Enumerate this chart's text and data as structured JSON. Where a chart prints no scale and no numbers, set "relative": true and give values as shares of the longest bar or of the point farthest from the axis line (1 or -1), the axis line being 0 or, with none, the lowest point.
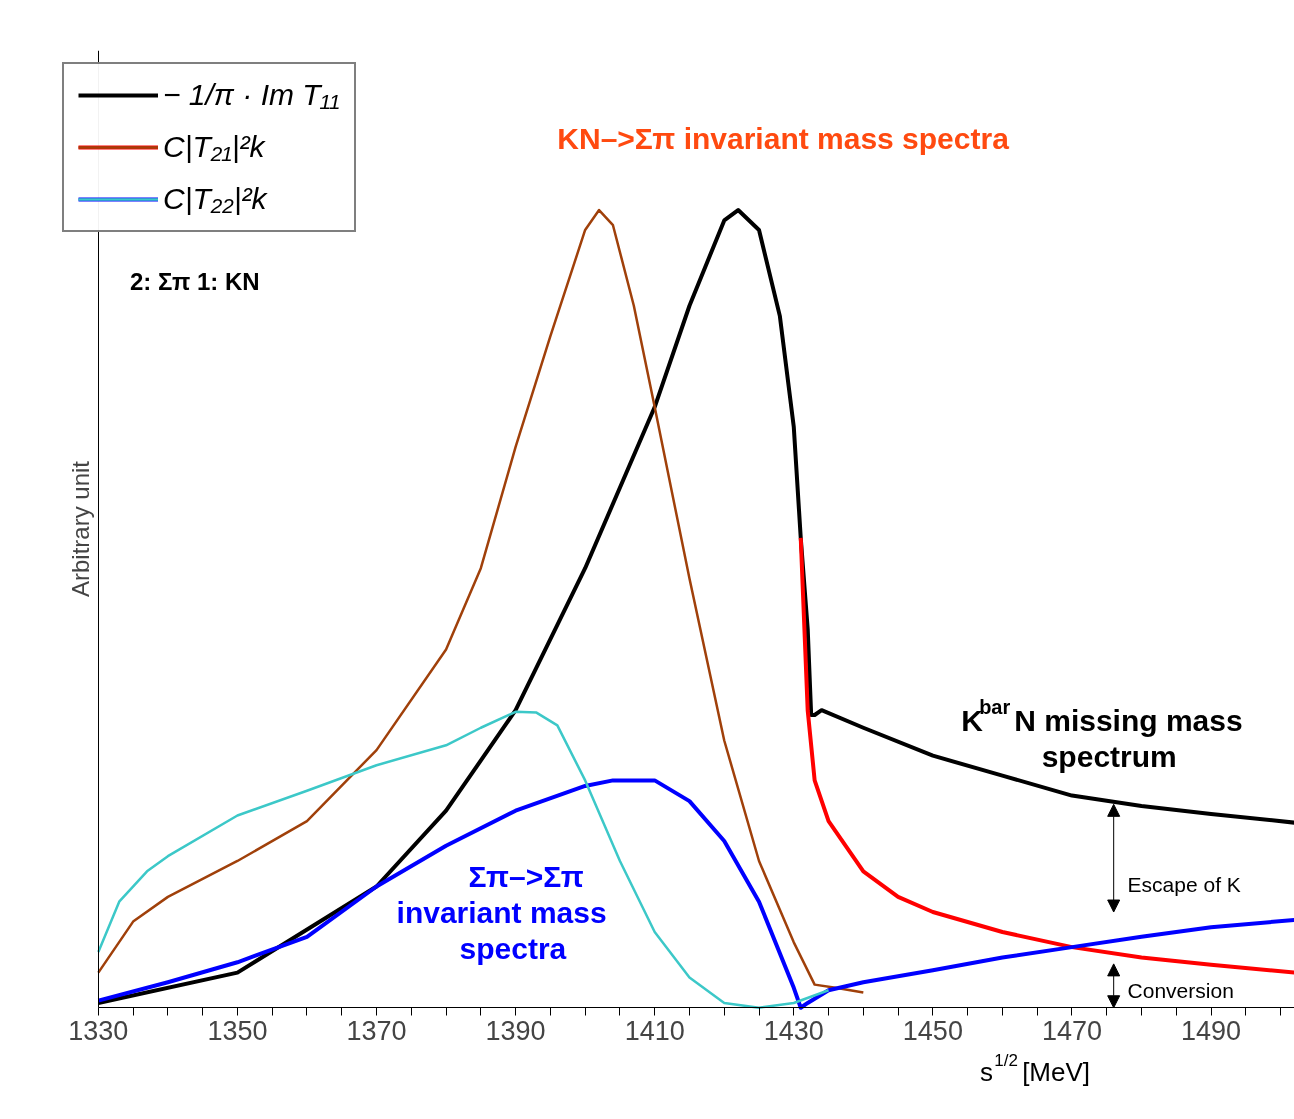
{
  "chart_data": {
    "type": "line",
    "relative": true,
    "xlabel": "s$^{1/2}$  [MeV]",
    "ylabel": "Arbitrary unit",
    "xlim": [
      1330,
      1502
    ],
    "xticks": [
      1330,
      {
        "value": 1335,
        "label": null
      },
      {
        "value": 1340,
        "label": null
      },
      {
        "value": 1345,
        "label": null
      },
      1350,
      {
        "value": 1355,
        "label": null
      },
      {
        "value": 1360,
        "label": null
      },
      {
        "value": 1365,
        "label": null
      },
      1370,
      {
        "value": 1375,
        "label": null
      },
      {
        "value": 1380,
        "label": null
      },
      {
        "value": 1385,
        "label": null
      },
      1390,
      {
        "value": 1395,
        "label": null
      },
      {
        "value": 1400,
        "label": null
      },
      {
        "value": 1405,
        "label": null
      },
      1410,
      {
        "value": 1415,
        "label": null
      },
      {
        "value": 1420,
        "label": null
      },
      {
        "value": 1425,
        "label": null
      },
      1430,
      {
        "value": 1435,
        "label": null
      },
      {
        "value": 1440,
        "label": null
      },
      {
        "value": 1445,
        "label": null
      },
      1450,
      {
        "value": 1455,
        "label": null
      },
      {
        "value": 1460,
        "label": null
      },
      {
        "value": 1465,
        "label": null
      },
      1470,
      {
        "value": 1475,
        "label": null
      },
      {
        "value": 1480,
        "label": null
      },
      {
        "value": 1485,
        "label": null
      },
      1490,
      {
        "value": 1495,
        "label": null
      },
      {
        "value": 1500,
        "label": null
      }
    ],
    "grid": false,
    "legend": "top left",
    "line_style": "solid",
    "marker": "none",
    "series": [
      {
        "name": "− 1/π · Im T₁₁",
        "color": "#000000",
        "x": [
          1330,
          1350,
          1370,
          1380,
          1390,
          1400,
          1410,
          1415,
          1420,
          1422,
          1425,
          1428,
          1430,
          1431,
          1432,
          1432.5,
          1433,
          1434,
          1440,
          1450,
          1460,
          1470,
          1480,
          1490,
          1502
        ],
        "values": [
          0.006,
          0.044,
          0.152,
          0.247,
          0.373,
          0.551,
          0.753,
          0.88,
          0.987,
          1.0,
          0.975,
          0.867,
          0.728,
          0.589,
          0.475,
          0.367,
          0.367,
          0.373,
          0.351,
          0.316,
          0.291,
          0.266,
          0.253,
          0.243,
          0.232
        ]
      },
      {
        "name": "C|T₂₁|²k",
        "color": "#ff0000",
        "x": [
          1431,
          1432,
          1433,
          1435,
          1440,
          1445,
          1450,
          1460,
          1470,
          1480,
          1490,
          1502
        ],
        "values": [
          0.589,
          0.373,
          0.285,
          0.234,
          0.171,
          0.139,
          0.12,
          0.095,
          0.076,
          0.063,
          0.054,
          0.044
        ]
      },
      {
        "color": "#a0400a",
        "x": [
          1330,
          1335,
          1340,
          1350,
          1360,
          1370,
          1380,
          1385,
          1390,
          1395,
          1400,
          1402,
          1404,
          1407,
          1410,
          1415,
          1420,
          1425,
          1430,
          1433,
          1436,
          1440
        ],
        "values": [
          0.044,
          0.108,
          0.139,
          0.184,
          0.234,
          0.323,
          0.449,
          0.551,
          0.703,
          0.842,
          0.975,
          1.0,
          0.981,
          0.88,
          0.753,
          0.538,
          0.335,
          0.184,
          0.082,
          0.029,
          0.025,
          0.019
        ]
      },
      {
        "name": "C|T₂₂|²k",
        "color": "#0000ff",
        "x": [
          1330,
          1340,
          1350,
          1360,
          1370,
          1380,
          1390,
          1400,
          1404,
          1410,
          1415,
          1420,
          1425,
          1430,
          1431,
          1432,
          1435,
          1440,
          1450,
          1460,
          1470,
          1480,
          1490,
          1502
        ],
        "values": [
          0.009,
          0.032,
          0.057,
          0.089,
          0.152,
          0.203,
          0.247,
          0.278,
          0.285,
          0.285,
          0.259,
          0.209,
          0.133,
          0.025,
          0.0,
          0.006,
          0.022,
          0.032,
          0.047,
          0.063,
          0.076,
          0.089,
          0.101,
          0.11
        ]
      },
      {
        "color": "#3cc8c8",
        "x": [
          1330,
          1333,
          1337,
          1340,
          1350,
          1360,
          1370,
          1380,
          1385,
          1390,
          1393,
          1396,
          1400,
          1405,
          1410,
          1415,
          1420,
          1425,
          1430,
          1435
        ],
        "values": [
          0.07,
          0.133,
          0.171,
          0.19,
          0.241,
          0.272,
          0.304,
          0.329,
          0.351,
          0.371,
          0.37,
          0.354,
          0.285,
          0.184,
          0.095,
          0.038,
          0.006,
          0.0,
          0.006,
          0.022
        ]
      }
    ],
    "annotations": [
      "KN–>Σπ invariant mass spectra",
      "Σπ–>Σπ\ninvariant mass\nspectra",
      "K$^{bar}$N missing mass\nspectrum",
      "Escape of K",
      "Conversion",
      "2: Σπ   1: KN"
    ]
  }
}
